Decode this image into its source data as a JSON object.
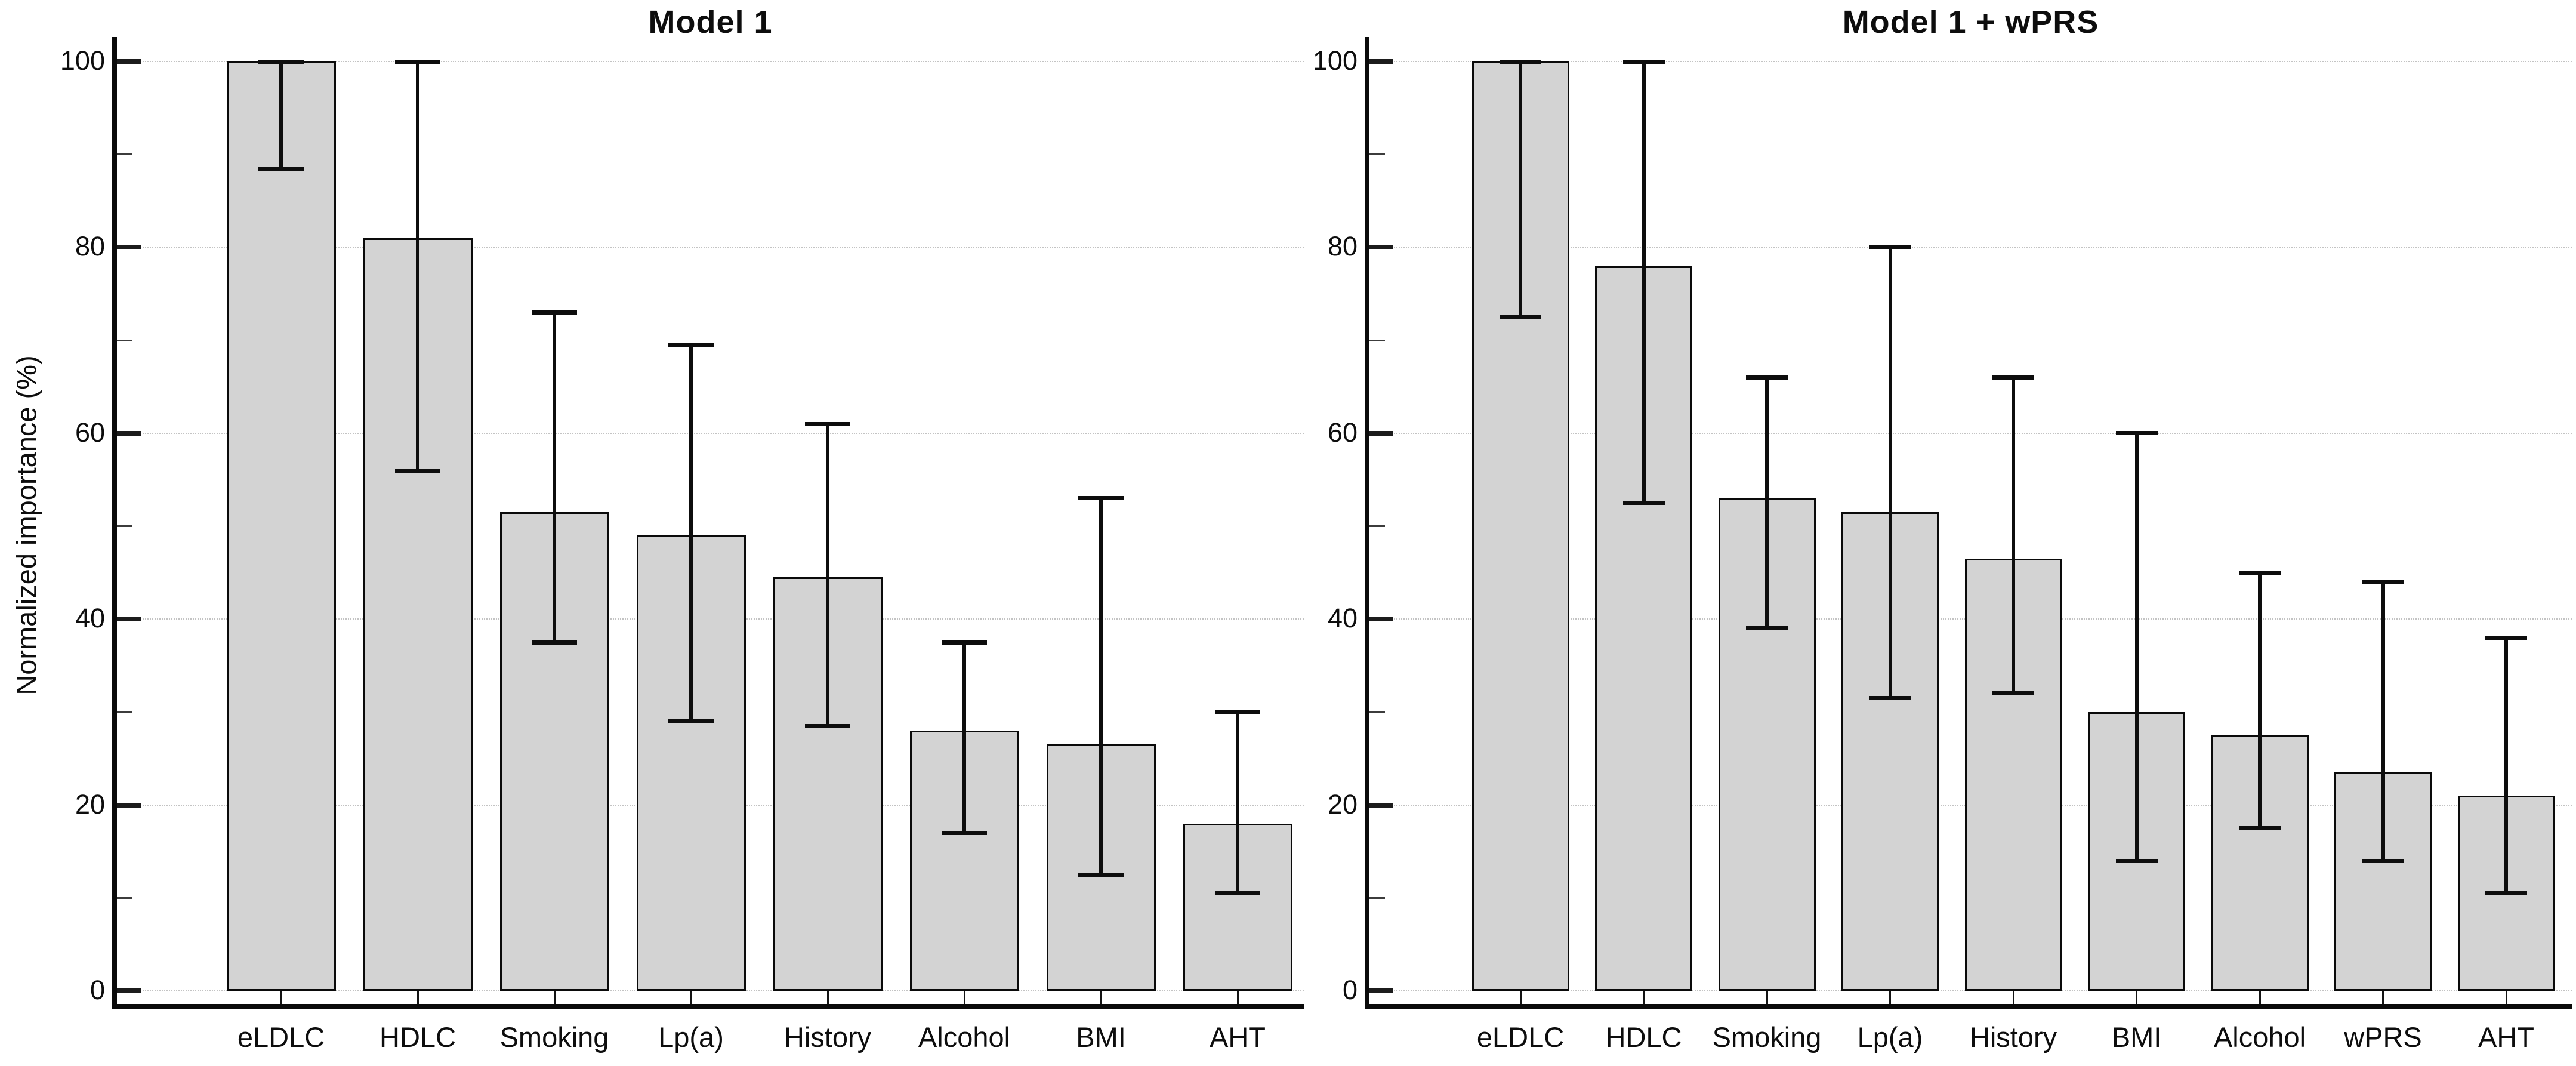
{
  "figure": {
    "ylabel": "Normalized importance (%)",
    "background_color": "#ffffff",
    "bar_fill_color": "#d3d3d3",
    "bar_border_color": "#0a0a0a",
    "error_bar_color": "#0d0d0d",
    "gridline_color": "#c3c3c3",
    "axis_color": "#0a0a0a",
    "grid": "dotted horizontal gridlines at major ticks",
    "legend": "none"
  },
  "chart_data": [
    {
      "type": "bar",
      "title": "Model 1",
      "ylabel": "Normalized importance (%)",
      "ylim": [
        0,
        100
      ],
      "yticks": [
        100,
        80,
        60,
        40,
        20,
        0
      ],
      "yticks_minor": [
        90,
        70,
        50,
        30,
        10
      ],
      "categories": [
        "eLDLC",
        "HDLC",
        "Smoking",
        "Lp(a)",
        "History",
        "Alcohol",
        "BMI",
        "AHT"
      ],
      "values": [
        100,
        81,
        51.5,
        49,
        44.5,
        28,
        26.5,
        18
      ],
      "error_low": [
        88.5,
        56,
        37.5,
        29,
        28.5,
        17,
        12.5,
        10.5
      ],
      "error_high": [
        100,
        100,
        73,
        69.5,
        61,
        37.5,
        53,
        30
      ]
    },
    {
      "type": "bar",
      "title": "Model 1 + wPRS",
      "ylabel": "Normalized importance (%)",
      "ylim": [
        0,
        100
      ],
      "yticks": [
        100,
        80,
        60,
        40,
        20,
        0
      ],
      "yticks_minor": [
        90,
        70,
        50,
        30,
        10
      ],
      "categories": [
        "eLDLC",
        "HDLC",
        "Smoking",
        "Lp(a)",
        "History",
        "BMI",
        "Alcohol",
        "wPRS",
        "AHT"
      ],
      "values": [
        100,
        78,
        53,
        51.5,
        46.5,
        30,
        27.5,
        23.5,
        21
      ],
      "error_low": [
        72.5,
        52.5,
        39,
        31.5,
        32,
        14,
        17.5,
        14,
        10.5
      ],
      "error_high": [
        100,
        100,
        66,
        80,
        66,
        60,
        45,
        44,
        38
      ]
    }
  ]
}
